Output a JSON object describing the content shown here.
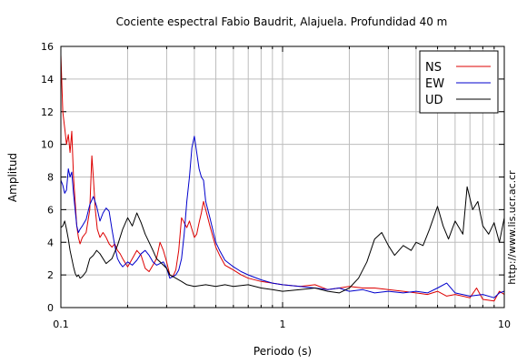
{
  "chart_data": {
    "type": "line",
    "title": "Cociente espectral Fabio Baudrit, Alajuela. Profundidad 40 m",
    "xlabel": "Periodo (s)",
    "ylabel": "Amplitud",
    "x_scale": "log",
    "xlim": [
      0.1,
      10
    ],
    "ylim": [
      0,
      16
    ],
    "x_ticks": [
      {
        "v": 0.1,
        "label": "0.1"
      },
      {
        "v": 1,
        "label": "1"
      },
      {
        "v": 10,
        "label": "10"
      }
    ],
    "y_ticks": [
      0,
      2,
      4,
      6,
      8,
      10,
      12,
      14,
      16
    ],
    "grid": true,
    "legend_position": "top-right",
    "side_text": "http://www.lis.ucr.ac.cr",
    "series": [
      {
        "name": "NS",
        "color": "#dd0000",
        "points": [
          [
            0.1,
            15.5
          ],
          [
            0.102,
            12.0
          ],
          [
            0.104,
            11.0
          ],
          [
            0.106,
            10.0
          ],
          [
            0.108,
            10.6
          ],
          [
            0.11,
            9.5
          ],
          [
            0.112,
            10.8
          ],
          [
            0.114,
            8.0
          ],
          [
            0.116,
            6.5
          ],
          [
            0.118,
            5.0
          ],
          [
            0.12,
            4.3
          ],
          [
            0.122,
            3.9
          ],
          [
            0.125,
            4.3
          ],
          [
            0.13,
            4.6
          ],
          [
            0.135,
            6.0
          ],
          [
            0.138,
            9.3
          ],
          [
            0.14,
            8.0
          ],
          [
            0.143,
            6.0
          ],
          [
            0.146,
            4.8
          ],
          [
            0.15,
            4.3
          ],
          [
            0.155,
            4.6
          ],
          [
            0.16,
            4.3
          ],
          [
            0.165,
            3.9
          ],
          [
            0.17,
            3.7
          ],
          [
            0.175,
            3.9
          ],
          [
            0.18,
            3.5
          ],
          [
            0.185,
            3.3
          ],
          [
            0.19,
            3.0
          ],
          [
            0.2,
            2.5
          ],
          [
            0.21,
            3.0
          ],
          [
            0.22,
            3.5
          ],
          [
            0.23,
            3.2
          ],
          [
            0.24,
            2.4
          ],
          [
            0.25,
            2.2
          ],
          [
            0.26,
            2.6
          ],
          [
            0.27,
            3.0
          ],
          [
            0.28,
            4.0
          ],
          [
            0.29,
            3.5
          ],
          [
            0.3,
            2.8
          ],
          [
            0.31,
            2.0
          ],
          [
            0.32,
            1.9
          ],
          [
            0.33,
            2.3
          ],
          [
            0.34,
            3.5
          ],
          [
            0.35,
            5.5
          ],
          [
            0.36,
            5.2
          ],
          [
            0.37,
            4.9
          ],
          [
            0.38,
            5.3
          ],
          [
            0.39,
            4.8
          ],
          [
            0.4,
            4.3
          ],
          [
            0.41,
            4.5
          ],
          [
            0.42,
            5.2
          ],
          [
            0.43,
            5.8
          ],
          [
            0.44,
            6.5
          ],
          [
            0.45,
            6.0
          ],
          [
            0.47,
            5.0
          ],
          [
            0.5,
            3.7
          ],
          [
            0.52,
            3.2
          ],
          [
            0.55,
            2.6
          ],
          [
            0.6,
            2.3
          ],
          [
            0.65,
            2.0
          ],
          [
            0.7,
            1.8
          ],
          [
            0.8,
            1.6
          ],
          [
            0.9,
            1.5
          ],
          [
            1.0,
            1.4
          ],
          [
            1.2,
            1.3
          ],
          [
            1.4,
            1.4
          ],
          [
            1.6,
            1.1
          ],
          [
            1.8,
            1.2
          ],
          [
            2.0,
            1.3
          ],
          [
            2.3,
            1.2
          ],
          [
            2.6,
            1.2
          ],
          [
            3.0,
            1.1
          ],
          [
            3.5,
            1.0
          ],
          [
            4.0,
            0.9
          ],
          [
            4.5,
            0.8
          ],
          [
            5.0,
            1.0
          ],
          [
            5.5,
            0.7
          ],
          [
            6.0,
            0.8
          ],
          [
            7.0,
            0.6
          ],
          [
            7.5,
            1.2
          ],
          [
            8.0,
            0.5
          ],
          [
            9.0,
            0.4
          ],
          [
            9.5,
            1.0
          ],
          [
            10.0,
            0.8
          ]
        ]
      },
      {
        "name": "EW",
        "color": "#0000cc",
        "points": [
          [
            0.1,
            7.8
          ],
          [
            0.102,
            7.5
          ],
          [
            0.104,
            7.0
          ],
          [
            0.106,
            7.2
          ],
          [
            0.108,
            8.5
          ],
          [
            0.11,
            8.0
          ],
          [
            0.112,
            8.3
          ],
          [
            0.114,
            7.0
          ],
          [
            0.116,
            6.0
          ],
          [
            0.118,
            5.0
          ],
          [
            0.12,
            4.6
          ],
          [
            0.122,
            4.8
          ],
          [
            0.125,
            5.0
          ],
          [
            0.13,
            5.4
          ],
          [
            0.135,
            6.3
          ],
          [
            0.14,
            6.8
          ],
          [
            0.145,
            6.2
          ],
          [
            0.15,
            5.3
          ],
          [
            0.155,
            5.8
          ],
          [
            0.16,
            6.1
          ],
          [
            0.165,
            5.9
          ],
          [
            0.17,
            4.8
          ],
          [
            0.175,
            3.8
          ],
          [
            0.18,
            3.0
          ],
          [
            0.185,
            2.7
          ],
          [
            0.19,
            2.5
          ],
          [
            0.2,
            2.8
          ],
          [
            0.21,
            2.6
          ],
          [
            0.22,
            2.9
          ],
          [
            0.23,
            3.3
          ],
          [
            0.24,
            3.5
          ],
          [
            0.25,
            3.2
          ],
          [
            0.26,
            2.8
          ],
          [
            0.27,
            2.6
          ],
          [
            0.28,
            2.7
          ],
          [
            0.29,
            2.8
          ],
          [
            0.3,
            2.4
          ],
          [
            0.31,
            1.8
          ],
          [
            0.32,
            1.9
          ],
          [
            0.33,
            2.0
          ],
          [
            0.34,
            2.3
          ],
          [
            0.35,
            3.0
          ],
          [
            0.36,
            4.5
          ],
          [
            0.37,
            6.5
          ],
          [
            0.38,
            8.0
          ],
          [
            0.39,
            9.8
          ],
          [
            0.4,
            10.5
          ],
          [
            0.41,
            9.5
          ],
          [
            0.42,
            8.5
          ],
          [
            0.43,
            8.0
          ],
          [
            0.44,
            7.8
          ],
          [
            0.45,
            6.5
          ],
          [
            0.47,
            5.5
          ],
          [
            0.5,
            4.0
          ],
          [
            0.52,
            3.5
          ],
          [
            0.55,
            2.9
          ],
          [
            0.6,
            2.5
          ],
          [
            0.65,
            2.2
          ],
          [
            0.7,
            2.0
          ],
          [
            0.8,
            1.7
          ],
          [
            0.9,
            1.5
          ],
          [
            1.0,
            1.4
          ],
          [
            1.2,
            1.3
          ],
          [
            1.4,
            1.2
          ],
          [
            1.6,
            1.1
          ],
          [
            1.8,
            1.2
          ],
          [
            2.0,
            1.0
          ],
          [
            2.3,
            1.1
          ],
          [
            2.6,
            0.9
          ],
          [
            3.0,
            1.0
          ],
          [
            3.5,
            0.9
          ],
          [
            4.0,
            1.0
          ],
          [
            4.5,
            0.9
          ],
          [
            5.0,
            1.2
          ],
          [
            5.5,
            1.5
          ],
          [
            6.0,
            0.9
          ],
          [
            7.0,
            0.7
          ],
          [
            8.0,
            0.8
          ],
          [
            9.0,
            0.6
          ],
          [
            9.5,
            0.9
          ],
          [
            10.0,
            1.0
          ]
        ]
      },
      {
        "name": "UD",
        "color": "#000000",
        "points": [
          [
            0.1,
            4.9
          ],
          [
            0.102,
            5.0
          ],
          [
            0.104,
            5.3
          ],
          [
            0.106,
            4.8
          ],
          [
            0.108,
            4.2
          ],
          [
            0.11,
            3.5
          ],
          [
            0.112,
            3.0
          ],
          [
            0.114,
            2.5
          ],
          [
            0.116,
            2.1
          ],
          [
            0.118,
            1.9
          ],
          [
            0.12,
            2.0
          ],
          [
            0.122,
            1.8
          ],
          [
            0.125,
            1.9
          ],
          [
            0.13,
            2.2
          ],
          [
            0.135,
            3.0
          ],
          [
            0.14,
            3.2
          ],
          [
            0.145,
            3.5
          ],
          [
            0.15,
            3.3
          ],
          [
            0.16,
            2.7
          ],
          [
            0.17,
            3.0
          ],
          [
            0.18,
            3.8
          ],
          [
            0.19,
            4.8
          ],
          [
            0.2,
            5.5
          ],
          [
            0.21,
            5.0
          ],
          [
            0.22,
            5.8
          ],
          [
            0.23,
            5.2
          ],
          [
            0.24,
            4.5
          ],
          [
            0.25,
            4.0
          ],
          [
            0.26,
            3.5
          ],
          [
            0.27,
            3.0
          ],
          [
            0.28,
            2.8
          ],
          [
            0.29,
            2.6
          ],
          [
            0.3,
            2.4
          ],
          [
            0.31,
            2.0
          ],
          [
            0.32,
            1.9
          ],
          [
            0.33,
            1.8
          ],
          [
            0.35,
            1.6
          ],
          [
            0.37,
            1.4
          ],
          [
            0.4,
            1.3
          ],
          [
            0.45,
            1.4
          ],
          [
            0.5,
            1.3
          ],
          [
            0.55,
            1.4
          ],
          [
            0.6,
            1.3
          ],
          [
            0.7,
            1.4
          ],
          [
            0.8,
            1.2
          ],
          [
            0.9,
            1.1
          ],
          [
            1.0,
            1.0
          ],
          [
            1.2,
            1.1
          ],
          [
            1.4,
            1.2
          ],
          [
            1.6,
            1.0
          ],
          [
            1.8,
            0.9
          ],
          [
            2.0,
            1.2
          ],
          [
            2.2,
            1.8
          ],
          [
            2.4,
            2.8
          ],
          [
            2.6,
            4.2
          ],
          [
            2.8,
            4.6
          ],
          [
            3.0,
            3.8
          ],
          [
            3.2,
            3.2
          ],
          [
            3.5,
            3.8
          ],
          [
            3.8,
            3.5
          ],
          [
            4.0,
            4.0
          ],
          [
            4.3,
            3.8
          ],
          [
            4.6,
            4.8
          ],
          [
            5.0,
            6.2
          ],
          [
            5.3,
            5.0
          ],
          [
            5.6,
            4.2
          ],
          [
            6.0,
            5.3
          ],
          [
            6.5,
            4.5
          ],
          [
            6.8,
            7.4
          ],
          [
            7.2,
            6.0
          ],
          [
            7.6,
            6.5
          ],
          [
            8.0,
            5.0
          ],
          [
            8.5,
            4.5
          ],
          [
            9.0,
            5.2
          ],
          [
            9.5,
            4.0
          ],
          [
            10.0,
            5.5
          ]
        ]
      }
    ]
  }
}
